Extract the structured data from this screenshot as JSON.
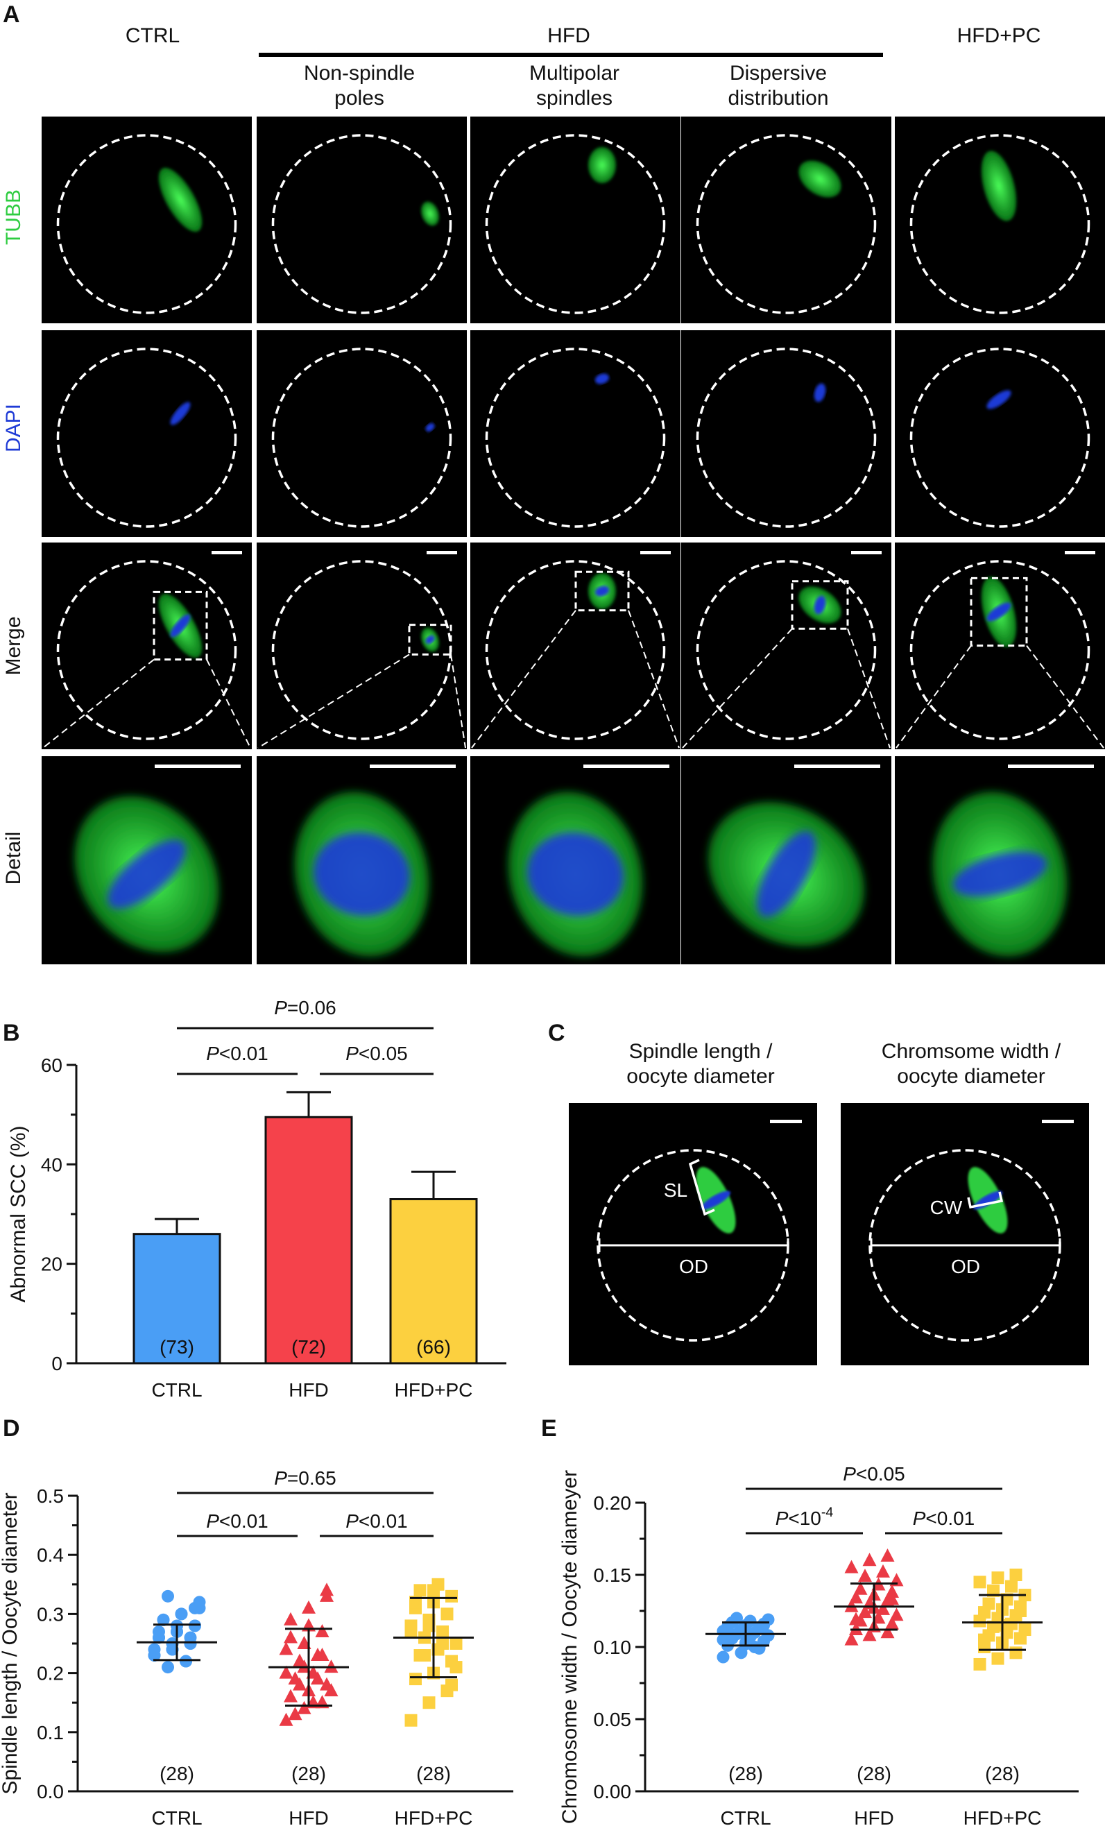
{
  "panel_a": {
    "label": "A",
    "group_ctrl": "CTRL",
    "group_hfd": "HFD",
    "group_hfdpc": "HFD+PC",
    "subgroups": [
      {
        "line1": "Non-spindle",
        "line2": "poles"
      },
      {
        "line1": "Multipolar",
        "line2": "spindles"
      },
      {
        "line1": "Dispersive",
        "line2": "distribution"
      }
    ],
    "rows": [
      "TUBB",
      "DAPI",
      "Merge",
      "Detail"
    ],
    "colors": {
      "tubb": "#2ecc40",
      "dapi": "#1f3bd6"
    }
  },
  "panel_b": {
    "label": "B",
    "chart_data": {
      "type": "bar",
      "categories": [
        "CTRL",
        "HFD",
        "HFD+PC"
      ],
      "values": [
        26,
        49.5,
        33
      ],
      "errors": [
        3,
        5,
        5.5
      ],
      "counts": [
        "(73)",
        "(72)",
        "(66)"
      ],
      "colors": [
        "#4a9ef5",
        "#f5424b",
        "#fcd03f"
      ],
      "ylabel": "Abnormal SCC (%)",
      "ylim": [
        0,
        60
      ],
      "yticks": [
        "0",
        "20",
        "40",
        "60"
      ],
      "comparisons": [
        {
          "p": "P",
          "rel": "=0.06"
        },
        {
          "p": "P",
          "rel": "<0.01"
        },
        {
          "p": "P",
          "rel": "<0.05"
        }
      ]
    }
  },
  "panel_c": {
    "label": "C",
    "titles": [
      {
        "line1": "Spindle length /",
        "line2": "oocyte diameter"
      },
      {
        "line1": "Chromsome width /",
        "line2": "oocyte diameter"
      }
    ],
    "annot_sl": "SL",
    "annot_cw": "CW",
    "annot_od": "OD"
  },
  "panel_d": {
    "label": "D",
    "chart_data": {
      "type": "scatter",
      "categories": [
        "CTRL",
        "HFD",
        "HFD+PC"
      ],
      "ylabel": "Spindle length / Oocyte diameter",
      "ylim": [
        0,
        0.5
      ],
      "yticks": [
        "0.0",
        "0.1",
        "0.2",
        "0.3",
        "0.4",
        "0.5"
      ],
      "means": [
        0.252,
        0.21,
        0.26
      ],
      "sd": [
        0.03,
        0.065,
        0.067
      ],
      "counts": [
        "(28)",
        "(28)",
        "(28)"
      ],
      "colors": [
        "#4a9ef5",
        "#ea3a45",
        "#fcd03f"
      ],
      "markers": [
        "circle",
        "triangle",
        "square"
      ],
      "series": [
        {
          "values": [
            0.23,
            0.24,
            0.25,
            0.26,
            0.27,
            0.28,
            0.29,
            0.3,
            0.31,
            0.33,
            0.22,
            0.23,
            0.24,
            0.25,
            0.26,
            0.27,
            0.28,
            0.29,
            0.3,
            0.32,
            0.21,
            0.22,
            0.24,
            0.25,
            0.26,
            0.27,
            0.28,
            0.31
          ]
        },
        {
          "values": [
            0.12,
            0.14,
            0.15,
            0.16,
            0.17,
            0.18,
            0.19,
            0.2,
            0.21,
            0.22,
            0.23,
            0.24,
            0.25,
            0.27,
            0.29,
            0.31,
            0.34,
            0.13,
            0.15,
            0.17,
            0.18,
            0.19,
            0.2,
            0.21,
            0.23,
            0.26,
            0.28,
            0.33
          ]
        },
        {
          "values": [
            0.12,
            0.15,
            0.17,
            0.19,
            0.2,
            0.22,
            0.23,
            0.24,
            0.25,
            0.26,
            0.27,
            0.28,
            0.29,
            0.3,
            0.31,
            0.32,
            0.33,
            0.34,
            0.35,
            0.21,
            0.23,
            0.25,
            0.27,
            0.28,
            0.3,
            0.32,
            0.34,
            0.18
          ]
        }
      ],
      "comparisons": [
        {
          "p": "P",
          "rel": "=0.65"
        },
        {
          "p": "P",
          "rel": "<0.01"
        },
        {
          "p": "P",
          "rel": "<0.01"
        }
      ]
    }
  },
  "panel_e": {
    "label": "E",
    "chart_data": {
      "type": "scatter",
      "categories": [
        "CTRL",
        "HFD",
        "HFD+PC"
      ],
      "ylabel": "Chromosome width / Oocyte diameyer",
      "ylim": [
        0,
        0.2
      ],
      "yticks": [
        "0.00",
        "0.05",
        "0.10",
        "0.15",
        "0.20"
      ],
      "means": [
        0.109,
        0.128,
        0.117
      ],
      "sd": [
        0.008,
        0.016,
        0.019
      ],
      "counts": [
        "(28)",
        "(28)",
        "(28)"
      ],
      "colors": [
        "#4a9ef5",
        "#ea3a45",
        "#fcd03f"
      ],
      "markers": [
        "circle",
        "triangle",
        "square"
      ],
      "series": [
        {
          "values": [
            0.093,
            0.096,
            0.099,
            0.101,
            0.103,
            0.104,
            0.106,
            0.107,
            0.108,
            0.109,
            0.11,
            0.111,
            0.112,
            0.113,
            0.114,
            0.115,
            0.116,
            0.117,
            0.118,
            0.119,
            0.12,
            0.1,
            0.105,
            0.11,
            0.113,
            0.107,
            0.102,
            0.115
          ]
        },
        {
          "values": [
            0.105,
            0.108,
            0.11,
            0.112,
            0.114,
            0.116,
            0.118,
            0.12,
            0.122,
            0.124,
            0.126,
            0.128,
            0.13,
            0.132,
            0.134,
            0.136,
            0.138,
            0.14,
            0.143,
            0.146,
            0.149,
            0.152,
            0.155,
            0.16,
            0.163,
            0.119,
            0.127,
            0.133
          ]
        },
        {
          "values": [
            0.088,
            0.092,
            0.096,
            0.1,
            0.103,
            0.106,
            0.108,
            0.11,
            0.112,
            0.114,
            0.116,
            0.118,
            0.12,
            0.122,
            0.124,
            0.126,
            0.128,
            0.13,
            0.133,
            0.136,
            0.139,
            0.142,
            0.145,
            0.148,
            0.15,
            0.105,
            0.115,
            0.125
          ]
        }
      ],
      "comparisons": [
        {
          "p": "P",
          "rel": "<0.05"
        },
        {
          "p": "P",
          "rel": "<10",
          "sup": "-4"
        },
        {
          "p": "P",
          "rel": "<0.01"
        }
      ]
    }
  }
}
